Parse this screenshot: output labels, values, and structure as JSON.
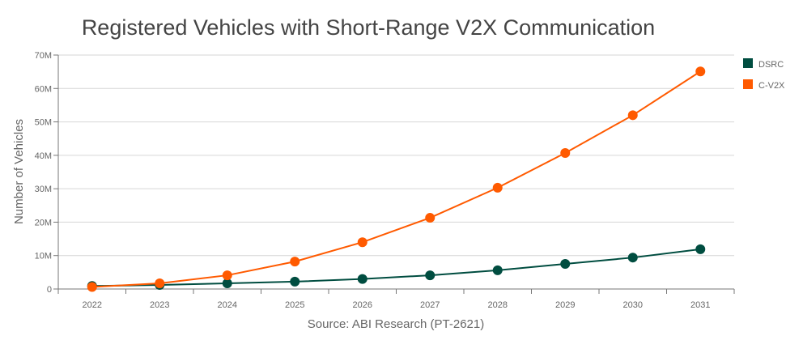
{
  "chart_data": {
    "type": "line",
    "title": "Registered Vehicles with Short-Range V2X Communication",
    "xlabel": "Source: ABI Research (PT-2621)",
    "ylabel": "Number of Vehicles",
    "categories": [
      "2022",
      "2023",
      "2024",
      "2025",
      "2026",
      "2027",
      "2028",
      "2029",
      "2030",
      "2031"
    ],
    "ylim": [
      0,
      70000000
    ],
    "yticks": [
      0,
      10000000,
      20000000,
      30000000,
      40000000,
      50000000,
      60000000,
      70000000
    ],
    "ytick_labels": [
      "0",
      "10M",
      "20M",
      "30M",
      "40M",
      "50M",
      "60M",
      "70M"
    ],
    "grid": true,
    "legend_position": "right",
    "series": [
      {
        "name": "DSRC",
        "color": "#004d40",
        "values": [
          900000,
          1200000,
          1700000,
          2200000,
          3000000,
          4100000,
          5600000,
          7500000,
          9400000,
          11900000
        ]
      },
      {
        "name": "C-V2X",
        "color": "#ff5a00",
        "values": [
          600000,
          1700000,
          4100000,
          8200000,
          14000000,
          21300000,
          30300000,
          40700000,
          52000000,
          65100000
        ]
      }
    ]
  }
}
